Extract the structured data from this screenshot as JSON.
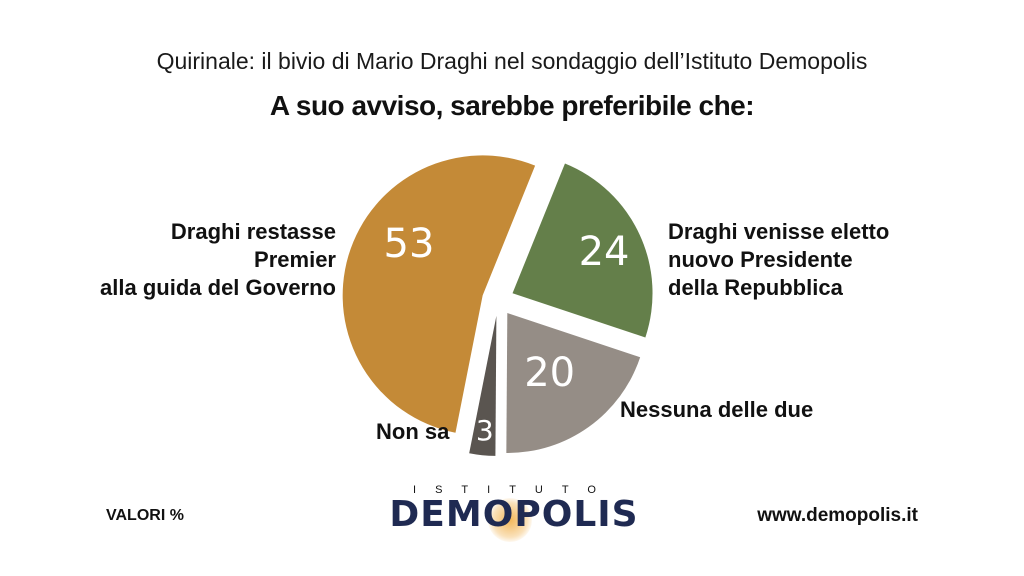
{
  "header": {
    "supertitle": "Quirinale: il bivio di Mario Draghi nel sondaggio dell’Istituto Demopolis",
    "title": "A suo avviso, sarebbe preferibile che:"
  },
  "labels": {
    "left_line1": "Draghi restasse",
    "left_line2": "Premier",
    "left_line3": "alla guida del Governo",
    "right_line1": "Draghi venisse eletto",
    "right_line2": "nuovo Presidente",
    "right_line3": "della Repubblica",
    "neither": "Nessuna delle due",
    "dontknow": "Non sa"
  },
  "footer": {
    "units": "VALORI %",
    "website": "www.demopolis.it",
    "logo_top": "ISTITUTO",
    "logo_main": "DEMOPOLIS"
  },
  "colors": {
    "premier": "#c48a37",
    "president": "#647f4a",
    "neither": "#958d86",
    "dontknow": "#5a5550",
    "logo_blue": "#1f2a52"
  },
  "chart_data": {
    "type": "pie",
    "exploded": true,
    "slices": [
      {
        "label": "Draghi restasse Premier alla guida del Governo",
        "value": 53,
        "color": "#c48a37"
      },
      {
        "label": "Draghi venisse eletto nuovo Presidente della Repubblica",
        "value": 24,
        "color": "#647f4a"
      },
      {
        "label": "Nessuna delle due",
        "value": 20,
        "color": "#958d86"
      },
      {
        "label": "Non sa",
        "value": 3,
        "color": "#5a5550"
      }
    ]
  }
}
